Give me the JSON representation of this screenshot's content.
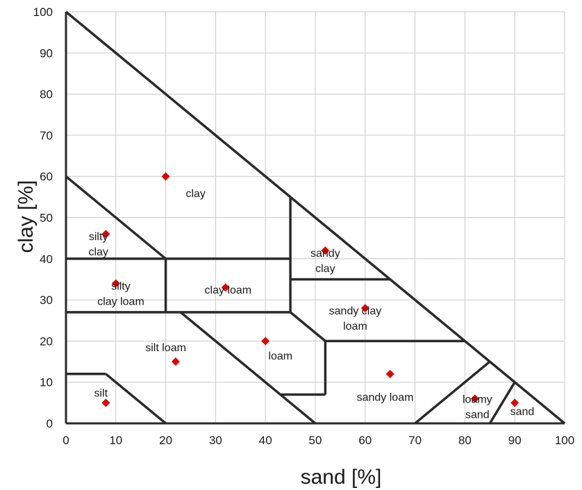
{
  "chart_data": {
    "type": "scatter",
    "xlabel": "sand [%]",
    "ylabel": "clay [%]",
    "xlim": [
      0,
      100
    ],
    "ylim": [
      0,
      100
    ],
    "x_ticks": [
      0,
      10,
      20,
      30,
      40,
      50,
      60,
      70,
      80,
      90,
      100
    ],
    "y_ticks": [
      0,
      10,
      20,
      30,
      40,
      50,
      60,
      70,
      80,
      90,
      100
    ],
    "grid": true,
    "points": [
      {
        "x": 20,
        "y": 60
      },
      {
        "x": 8,
        "y": 46
      },
      {
        "x": 10,
        "y": 34
      },
      {
        "x": 32,
        "y": 33
      },
      {
        "x": 52,
        "y": 42
      },
      {
        "x": 60,
        "y": 28
      },
      {
        "x": 40,
        "y": 20
      },
      {
        "x": 22,
        "y": 15
      },
      {
        "x": 65,
        "y": 12
      },
      {
        "x": 8,
        "y": 5
      },
      {
        "x": 82,
        "y": 6
      },
      {
        "x": 90,
        "y": 5
      }
    ],
    "point_color": "#e00000",
    "region_labels": [
      {
        "lines": [
          "clay"
        ],
        "x": 26,
        "y": 55
      },
      {
        "lines": [
          "silty",
          "clay"
        ],
        "x": 6.5,
        "y": 44.5
      },
      {
        "lines": [
          "silty",
          "clay loam"
        ],
        "x": 11,
        "y": 32.5
      },
      {
        "lines": [
          "clay loam"
        ],
        "x": 32.5,
        "y": 31.5
      },
      {
        "lines": [
          "sandy",
          "clay"
        ],
        "x": 52,
        "y": 40.5
      },
      {
        "lines": [
          "sandy clay",
          "loam"
        ],
        "x": 58,
        "y": 26.5
      },
      {
        "lines": [
          "silt loam"
        ],
        "x": 20,
        "y": 17.5
      },
      {
        "lines": [
          "loam"
        ],
        "x": 43,
        "y": 15.5
      },
      {
        "lines": [
          "sandy loam"
        ],
        "x": 64,
        "y": 5.5
      },
      {
        "lines": [
          "silt"
        ],
        "x": 7,
        "y": 6.5
      },
      {
        "lines": [
          "loamy",
          "sand"
        ],
        "x": 82.5,
        "y": 5
      },
      {
        "lines": [
          "sand"
        ],
        "x": 91.5,
        "y": 2
      }
    ],
    "boundaries": [
      [
        [
          0,
          100
        ],
        [
          100,
          0
        ]
      ],
      [
        [
          0,
          60
        ],
        [
          20,
          40
        ]
      ],
      [
        [
          0,
          40
        ],
        [
          45,
          40
        ]
      ],
      [
        [
          20,
          40
        ],
        [
          20,
          27
        ]
      ],
      [
        [
          0,
          27
        ],
        [
          45,
          27
        ]
      ],
      [
        [
          45,
          55
        ],
        [
          45,
          27
        ]
      ],
      [
        [
          45,
          35
        ],
        [
          65,
          35
        ]
      ],
      [
        [
          45,
          27
        ],
        [
          52,
          20
        ]
      ],
      [
        [
          52,
          20
        ],
        [
          80,
          20
        ]
      ],
      [
        [
          52,
          20
        ],
        [
          52,
          7
        ]
      ],
      [
        [
          43,
          7
        ],
        [
          52,
          7
        ]
      ],
      [
        [
          23,
          27
        ],
        [
          50,
          0
        ]
      ],
      [
        [
          0,
          12
        ],
        [
          8,
          12
        ]
      ],
      [
        [
          8,
          12
        ],
        [
          20,
          0
        ]
      ],
      [
        [
          70,
          0
        ],
        [
          85,
          15
        ]
      ],
      [
        [
          85,
          0
        ],
        [
          90,
          10
        ]
      ]
    ]
  }
}
